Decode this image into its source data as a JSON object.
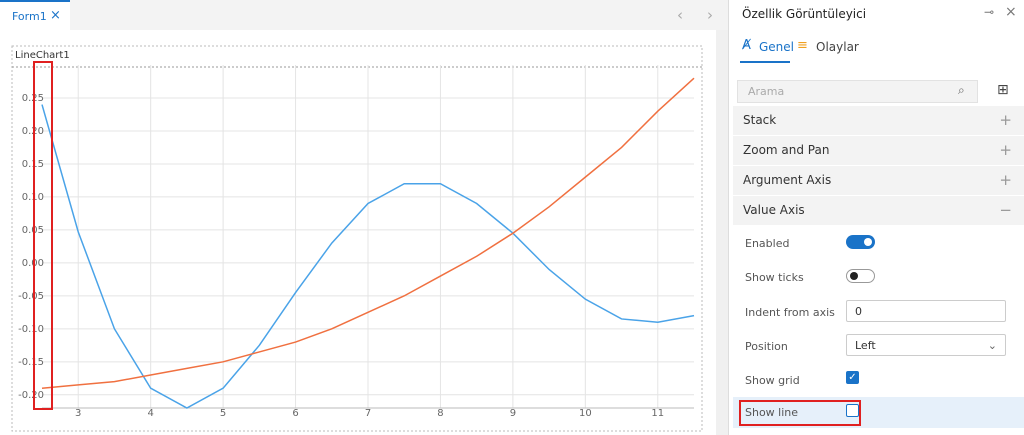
{
  "tab": {
    "title": "Form1"
  },
  "chart_data": {
    "type": "line",
    "title": "LineChart1",
    "x": [
      2.5,
      3,
      3.5,
      4,
      4.5,
      5,
      5.5,
      6,
      6.5,
      7,
      7.5,
      8,
      8.5,
      9,
      9.5,
      10,
      10.5,
      11,
      11.5
    ],
    "series": [
      {
        "color": "#4aa3e8",
        "values": [
          0.24,
          0.047,
          -0.1,
          -0.19,
          -0.22,
          -0.19,
          -0.125,
          -0.045,
          0.03,
          0.09,
          0.12,
          0.12,
          0.09,
          0.045,
          -0.01,
          -0.055,
          -0.085,
          -0.09,
          -0.08
        ]
      },
      {
        "color": "#f07040",
        "values": [
          -0.19,
          -0.185,
          -0.18,
          -0.17,
          -0.16,
          -0.15,
          -0.135,
          -0.12,
          -0.1,
          -0.075,
          -0.05,
          -0.02,
          0.01,
          0.045,
          0.085,
          0.13,
          0.175,
          0.23,
          0.28
        ]
      }
    ],
    "xlim": [
      2.5,
      11.5
    ],
    "xticks": [
      3,
      4,
      5,
      6,
      7,
      8,
      9,
      10,
      11
    ],
    "ylim": [
      -0.22,
      0.3
    ],
    "yticks": [
      0.25,
      {
        "value": 0.2,
        "label": "0.20"
      },
      0.15,
      {
        "value": 0.1,
        "label": "0.10"
      },
      0.05,
      {
        "value": 0,
        "label": "0.00"
      },
      -0.05,
      {
        "value": -0.1,
        "label": "-0.10"
      },
      -0.15,
      {
        "value": -0.2,
        "label": "-0.20"
      }
    ],
    "grid": true
  },
  "panel": {
    "title": "Özellik Görüntüleyici",
    "tabs": [
      "Genel",
      "Olaylar"
    ],
    "search_placeholder": "Arama",
    "sections": [
      "Stack",
      "Zoom and Pan",
      "Argument Axis",
      "Value Axis"
    ],
    "properties": [
      {
        "label": "Enabled",
        "value": true
      },
      {
        "label": "Show ticks",
        "value": false
      },
      {
        "label": "Indent from axis",
        "value": 0
      },
      {
        "label": "Position",
        "value": "Left"
      },
      {
        "label": "Show grid",
        "value": true
      },
      {
        "label": "Show line",
        "value": false
      }
    ]
  }
}
